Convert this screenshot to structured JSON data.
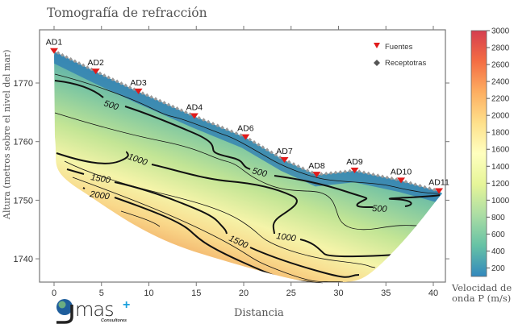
{
  "chart_data": {
    "type": "heatmap",
    "title": "Tomografía de refracción",
    "xlabel": "Distancia",
    "ylabel": "Altura (metros sobre el nivel del mar)",
    "xlim": [
      -1,
      42.5
    ],
    "ylim": [
      1735,
      1778
    ],
    "xticks": [
      0,
      5,
      10,
      15,
      20,
      25,
      30,
      35,
      40
    ],
    "yticks": [
      1740,
      1750,
      1760,
      1770
    ],
    "grid": false,
    "legend_position": "top-right",
    "legend": [
      {
        "label": "Fuentes",
        "marker": "red-down-triangle",
        "color": "#e01b1b"
      },
      {
        "label": "Receptotras",
        "marker": "gray-diamond",
        "color": "#555555"
      }
    ],
    "stations": [
      {
        "name": "AD1",
        "x": 0,
        "y": 1775.4
      },
      {
        "name": "AD2",
        "x": 4.4,
        "y": 1771.9
      },
      {
        "name": "AD3",
        "x": 8.9,
        "y": 1768.5
      },
      {
        "name": "AD4",
        "x": 14.8,
        "y": 1764.3
      },
      {
        "name": "AD6",
        "x": 20.2,
        "y": 1760.7
      },
      {
        "name": "AD7",
        "x": 24.3,
        "y": 1756.8
      },
      {
        "name": "AD8",
        "x": 27.7,
        "y": 1754.3
      },
      {
        "name": "AD9",
        "x": 31.7,
        "y": 1755.0
      },
      {
        "name": "AD10",
        "x": 36.6,
        "y": 1753.3
      },
      {
        "name": "AD11",
        "x": 40.6,
        "y": 1751.5
      }
    ],
    "contour_labels": [
      "500",
      "500",
      "500",
      "1000",
      "1000",
      "1500",
      "1500",
      "2000"
    ],
    "colorbar": {
      "label": "Velocidad de onda P (m/s)",
      "range": [
        100,
        3000
      ],
      "ticks": [
        200,
        400,
        600,
        800,
        1000,
        1200,
        1400,
        1600,
        1800,
        2000,
        2200,
        2400,
        2600,
        2800,
        3000
      ],
      "colors": [
        "#3288bd",
        "#66c2a5",
        "#abdda4",
        "#e6f598",
        "#ffffbf",
        "#fee08b",
        "#fdae61",
        "#f46d43",
        "#d53e4f"
      ]
    }
  },
  "logo": {
    "text": "gmas+",
    "subtext": "Consultores"
  }
}
